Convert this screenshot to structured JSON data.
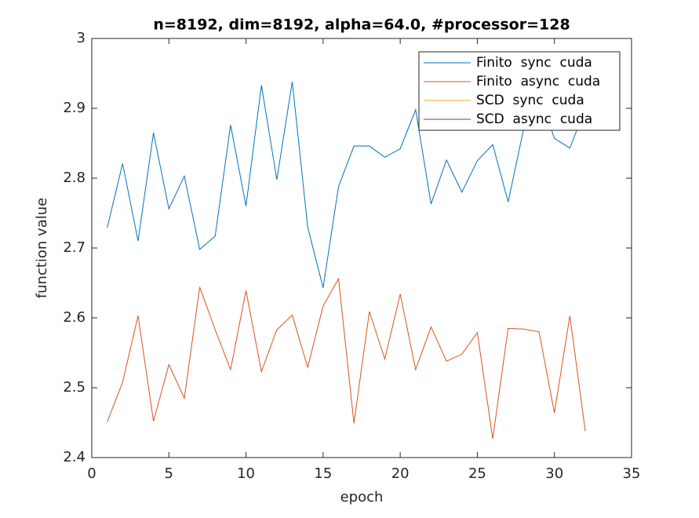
{
  "chart_data": {
    "type": "line",
    "title": "n=8192, dim=8192, alpha=64.0, #processor=128",
    "x_label": "epoch",
    "y_label": "function value",
    "x": [
      1,
      2,
      3,
      4,
      5,
      6,
      7,
      8,
      9,
      10,
      11,
      12,
      13,
      14,
      15,
      16,
      17,
      18,
      19,
      20,
      21,
      22,
      23,
      24,
      25,
      26,
      27,
      28,
      29,
      30,
      31,
      32
    ],
    "series": [
      {
        "name": "Finito  sync  cuda",
        "color": "#0072bd",
        "values": [
          2.729,
          2.821,
          2.71,
          2.865,
          2.756,
          2.803,
          2.698,
          2.717,
          2.876,
          2.76,
          2.933,
          2.798,
          2.938,
          2.73,
          2.643,
          2.788,
          2.846,
          2.846,
          2.83,
          2.842,
          2.898,
          2.763,
          2.826,
          2.78,
          2.825,
          2.848,
          2.766,
          2.87,
          2.92,
          2.857,
          2.843,
          2.9
        ]
      },
      {
        "name": "Finito  async  cuda",
        "color": "#d95319",
        "values": [
          2.451,
          2.508,
          2.603,
          2.452,
          2.533,
          2.485,
          2.644,
          2.583,
          2.526,
          2.639,
          2.523,
          2.583,
          2.604,
          2.529,
          2.617,
          2.656,
          2.449,
          2.609,
          2.541,
          2.634,
          2.526,
          2.587,
          2.538,
          2.548,
          2.579,
          2.427,
          2.585,
          2.584,
          2.58,
          2.464,
          2.603,
          2.438
        ]
      },
      {
        "name": "SCD  sync  cuda",
        "color": "#edb120",
        "values": [
          null,
          null,
          null,
          null,
          null,
          null,
          null,
          null,
          null,
          null,
          null,
          null,
          null,
          null,
          null,
          null,
          null,
          null,
          null,
          null,
          null,
          null,
          null,
          null,
          null,
          null,
          null,
          null,
          null,
          null,
          null,
          null
        ]
      },
      {
        "name": "SCD  async  cuda",
        "color": "#7e2f8e",
        "values": [
          null,
          null,
          null,
          null,
          null,
          null,
          null,
          null,
          null,
          null,
          null,
          null,
          null,
          null,
          null,
          null,
          null,
          null,
          null,
          null,
          null,
          null,
          null,
          null,
          null,
          null,
          null,
          null,
          null,
          null,
          null,
          null
        ]
      }
    ],
    "xlim": [
      0,
      35
    ],
    "xticks": [
      0,
      5,
      10,
      15,
      20,
      25,
      30,
      35
    ],
    "ylim": [
      2.4,
      3
    ],
    "yticks": [
      2.4,
      2.5,
      2.6,
      2.7,
      2.8,
      2.9,
      3
    ],
    "legend": "upper right"
  }
}
